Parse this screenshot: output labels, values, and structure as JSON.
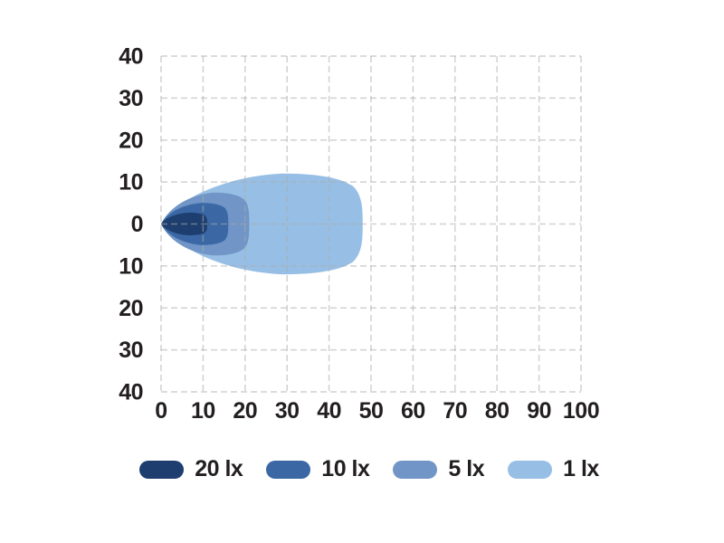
{
  "colors": {
    "background": "#ffffff",
    "grid": "#acacac",
    "text": "#231f20"
  },
  "chart_data": {
    "type": "area",
    "subtype": "illuminance-beam-pattern",
    "title": "",
    "xlabel": "",
    "ylabel": "",
    "xlim": [
      0,
      100
    ],
    "ylim": [
      -40,
      40
    ],
    "x_ticks": [
      0,
      10,
      20,
      30,
      40,
      50,
      60,
      70,
      80,
      90,
      100
    ],
    "y_ticks": [
      40,
      30,
      20,
      10,
      0,
      -10,
      -20,
      -30,
      -40
    ],
    "y_tick_labels": [
      "40",
      "30",
      "20",
      "10",
      "0",
      "10",
      "20",
      "30",
      "40"
    ],
    "grid": "dashed",
    "legend_position": "bottom",
    "series": [
      {
        "name": "20 lx",
        "color": "#1d3e6e",
        "reach": 11,
        "max_half_width": 2.7
      },
      {
        "name": "10 lx",
        "color": "#3b67a4",
        "reach": 16,
        "max_half_width": 5
      },
      {
        "name": "5 lx",
        "color": "#7095c6",
        "reach": 21,
        "max_half_width": 7.5
      },
      {
        "name": "1 lx",
        "color": "#97bfe5",
        "reach": 48,
        "max_half_width": 12
      }
    ]
  }
}
